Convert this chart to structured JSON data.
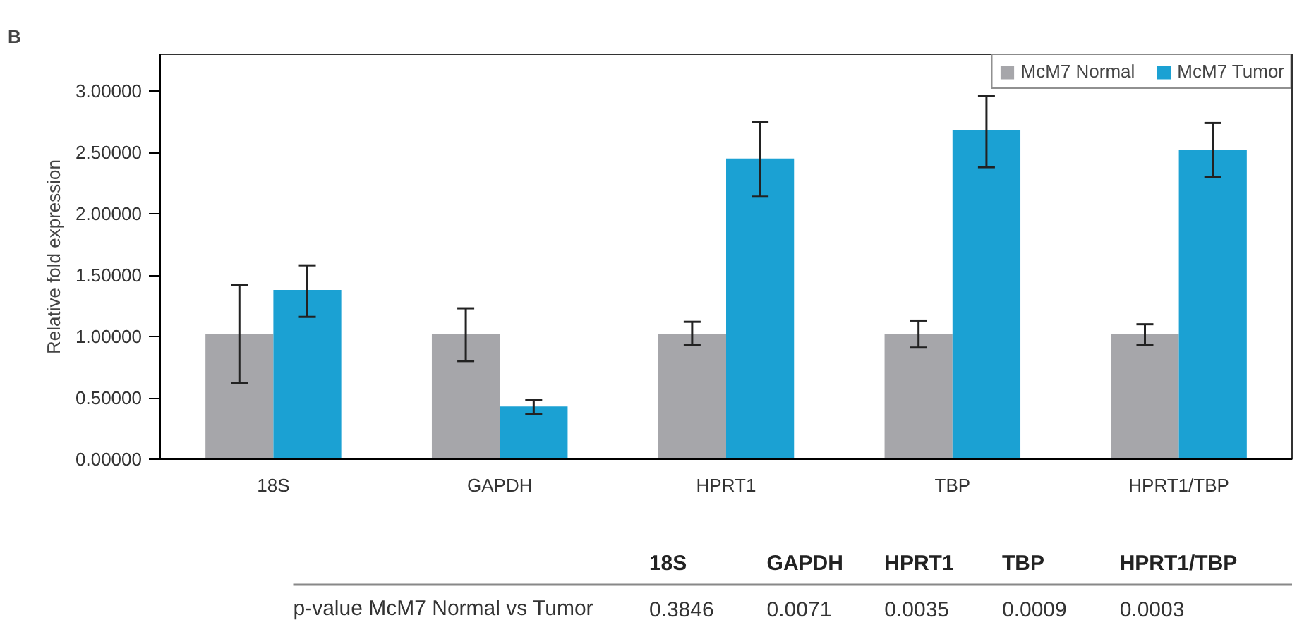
{
  "chart_data": {
    "type": "bar",
    "title": "B",
    "ylabel": "Relative fold expression",
    "categories": [
      "18S",
      "GAPDH",
      "HPRT1",
      "TBP",
      "HPRT1/TBP"
    ],
    "series": [
      {
        "name": "McM7 Normal",
        "color": "#a6a6aa",
        "values": [
          1.02,
          1.02,
          1.02,
          1.02,
          1.02
        ],
        "errors": [
          [
            0.62,
            1.42
          ],
          [
            0.8,
            1.23
          ],
          [
            0.93,
            1.12
          ],
          [
            0.91,
            1.13
          ],
          [
            0.93,
            1.1
          ]
        ]
      },
      {
        "name": "McM7 Tumor",
        "color": "#1ba1d3",
        "values": [
          1.38,
          0.43,
          2.45,
          2.68,
          2.52
        ],
        "errors": [
          [
            1.16,
            1.58
          ],
          [
            0.37,
            0.48
          ],
          [
            2.14,
            2.75
          ],
          [
            2.38,
            2.96
          ],
          [
            2.3,
            2.74
          ]
        ]
      }
    ],
    "ylim": [
      0,
      3.3
    ],
    "yticks": [
      {
        "value": 0,
        "label": "0.00000"
      },
      {
        "value": 0.5,
        "label": "0.50000"
      },
      {
        "value": 1,
        "label": "1.00000"
      },
      {
        "value": 1.5,
        "label": "1.50000"
      },
      {
        "value": 2,
        "label": "2.00000"
      },
      {
        "value": 2.5,
        "label": "2.50000"
      },
      {
        "value": 3,
        "label": "3.00000"
      }
    ],
    "grid": false,
    "legend": "top right",
    "annotations": [
      "p-value McM7 Normal vs Tumor",
      "0.3846",
      "0.0071",
      "0.0035",
      "0.0009",
      "0.0003"
    ]
  }
}
